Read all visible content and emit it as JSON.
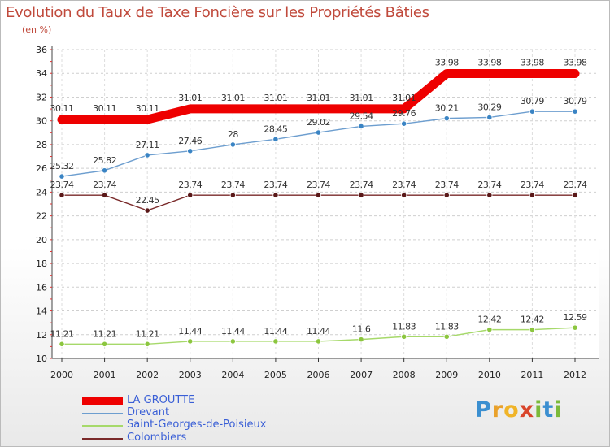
{
  "chart_data": {
    "type": "line",
    "title": "Evolution du Taux de Taxe Foncière sur les Propriétés Bâties",
    "ylabel": "(en %)",
    "xlabel": "",
    "ylim": [
      10,
      36
    ],
    "yticks": [
      10,
      12,
      14,
      16,
      18,
      20,
      22,
      24,
      26,
      28,
      30,
      32,
      34,
      36
    ],
    "x": [
      "2000",
      "2001",
      "2002",
      "2003",
      "2004",
      "2005",
      "2006",
      "2007",
      "2008",
      "2009",
      "2010",
      "2011",
      "2012"
    ],
    "grid": "horizontal dashed",
    "series": [
      {
        "name": "LA GROUTTE",
        "color": "#ee0000",
        "emphasis": true,
        "values": [
          30.11,
          30.11,
          30.11,
          31.01,
          31.01,
          31.01,
          31.01,
          31.01,
          31.01,
          33.98,
          33.98,
          33.98,
          33.98
        ],
        "labels": [
          "30.11",
          "30.11",
          "30.11",
          "31.01",
          "31.01",
          "31.01",
          "31.01",
          "31.01",
          "31.01",
          "33.98",
          "33.98",
          "33.98",
          "33.98"
        ]
      },
      {
        "name": "Drevant",
        "color": "#6d9ecf",
        "marker": "#3a84c4",
        "values": [
          25.32,
          25.82,
          27.11,
          27.46,
          28,
          28.45,
          29.02,
          29.54,
          29.76,
          30.21,
          30.29,
          30.79,
          30.79
        ],
        "labels": [
          "25.32",
          "25.82",
          "27.11",
          "27.46",
          "28",
          "28.45",
          "29.02",
          "29.54",
          "29.76",
          "30.21",
          "30.29",
          "30.79",
          "30.79"
        ]
      },
      {
        "name": "Saint-Georges-de-Poisieux",
        "color": "#a6d96a",
        "marker": "#8cc63f",
        "values": [
          11.21,
          11.21,
          11.21,
          11.44,
          11.44,
          11.44,
          11.44,
          11.6,
          11.83,
          11.83,
          12.42,
          12.42,
          12.59
        ],
        "labels": [
          "11.21",
          "11.21",
          "11.21",
          "11.44",
          "11.44",
          "11.44",
          "11.44",
          "11.6",
          "11.83",
          "11.83",
          "12.42",
          "12.42",
          "12.59"
        ]
      },
      {
        "name": "Colombiers",
        "color": "#7a2a2a",
        "marker": "#5a1818",
        "values": [
          23.74,
          23.74,
          22.45,
          23.74,
          23.74,
          23.74,
          23.74,
          23.74,
          23.74,
          23.74,
          23.74,
          23.74,
          23.74
        ],
        "labels": [
          "23.74",
          "23.74",
          "22.45",
          "23.74",
          "23.74",
          "23.74",
          "23.74",
          "23.74",
          "23.74",
          "23.74",
          "23.74",
          "23.74",
          "23.74"
        ]
      }
    ],
    "legend_position": "bottom-left"
  },
  "brand": {
    "letters": [
      "P",
      "r",
      "o",
      "x",
      "i",
      "t",
      "i"
    ],
    "text": "Proxiti"
  }
}
